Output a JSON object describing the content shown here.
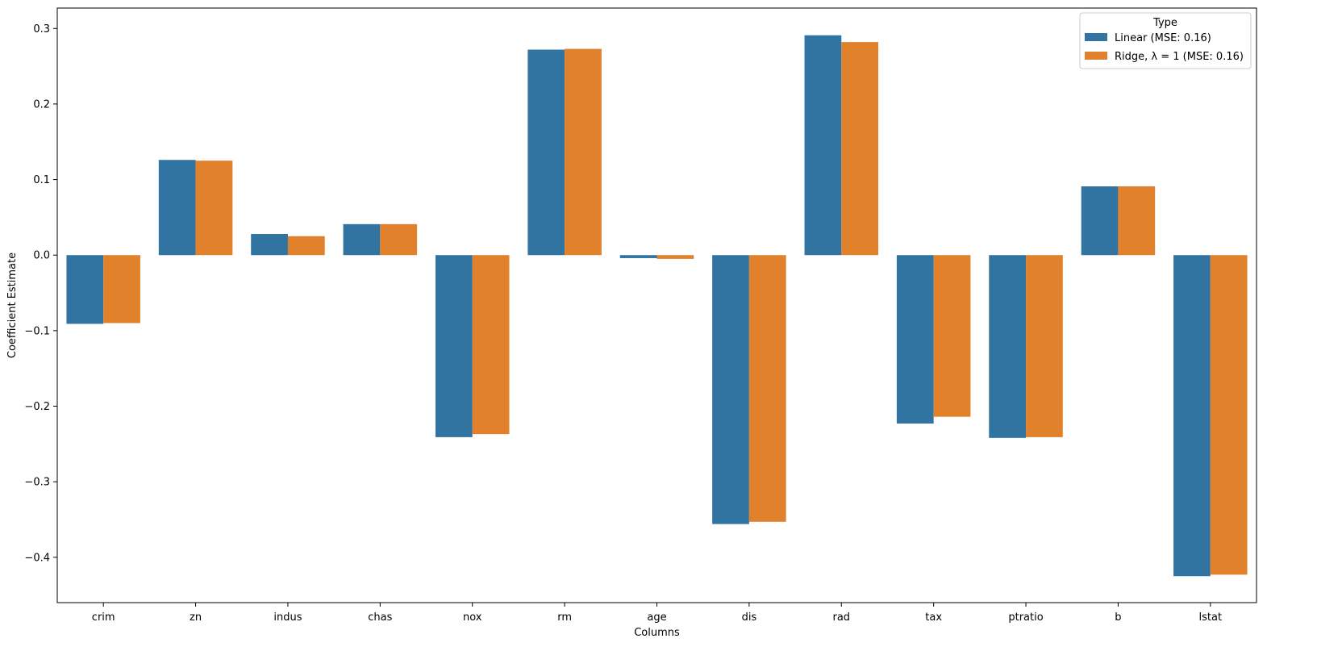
{
  "chart_data": {
    "type": "bar",
    "title": "",
    "xlabel": "Columns",
    "ylabel": "Coefficient Estimate",
    "categories": [
      "crim",
      "zn",
      "indus",
      "chas",
      "nox",
      "rm",
      "age",
      "dis",
      "rad",
      "tax",
      "ptratio",
      "b",
      "lstat"
    ],
    "series": [
      {
        "name": "Linear (MSE: 0.16)",
        "color": "#3274a1",
        "values": [
          -0.091,
          0.126,
          0.028,
          0.041,
          -0.241,
          0.272,
          -0.004,
          -0.356,
          0.291,
          -0.223,
          -0.242,
          0.091,
          -0.425
        ]
      },
      {
        "name": "Ridge, λ = 1 (MSE: 0.16)",
        "color": "#e1812c",
        "values": [
          -0.09,
          0.125,
          0.025,
          0.041,
          -0.237,
          0.273,
          -0.005,
          -0.353,
          0.282,
          -0.214,
          -0.241,
          0.091,
          -0.423
        ]
      }
    ],
    "ylim": [
      -0.46,
      0.327
    ],
    "yticks": [
      -0.4,
      -0.3,
      -0.2,
      -0.1,
      0.0,
      0.1,
      0.2,
      0.3
    ],
    "ytick_labels": [
      "−0.4",
      "−0.3",
      "−0.2",
      "−0.1",
      "0.0",
      "0.1",
      "0.2",
      "0.3"
    ],
    "legend": {
      "title": "Type",
      "placement": "top-right"
    },
    "grid": false
  }
}
